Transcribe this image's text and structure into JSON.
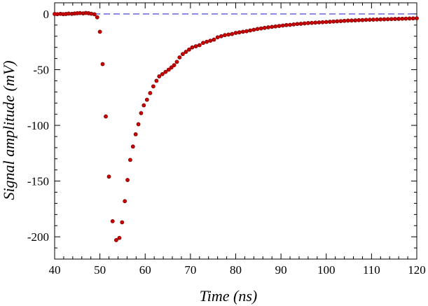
{
  "chart_data": {
    "type": "scatter",
    "xlabel": "Time (ns)",
    "ylabel": "Signal amplitude (mV)",
    "xlim": [
      40,
      120
    ],
    "ylim": [
      -220,
      10
    ],
    "xticks": [
      40,
      50,
      60,
      70,
      80,
      90,
      100,
      110,
      120
    ],
    "yticks": [
      0,
      -50,
      -100,
      -150,
      -200
    ],
    "grid": false,
    "legend": "none",
    "reference_line": {
      "y": 0,
      "style": "dashed",
      "color": "#3333cc"
    },
    "marker_color": "#cc0000",
    "marker_edge_color": "#660000",
    "series": [
      {
        "x": [
          40.0,
          40.6,
          41.3,
          41.9,
          42.5,
          43.1,
          43.8,
          44.4,
          45.0,
          45.6,
          46.3,
          46.9,
          47.5,
          48.1,
          48.8,
          49.4,
          50.0,
          50.6,
          51.3,
          52.0,
          52.8,
          53.6,
          54.3,
          54.9,
          55.5,
          56.1,
          56.7,
          57.3,
          57.9,
          58.5,
          59.1,
          59.7,
          60.4,
          61.1,
          61.8,
          62.5,
          63.1,
          63.8,
          64.5,
          65.2,
          65.8,
          66.4,
          67.0,
          67.6,
          68.3,
          69.0,
          69.7,
          70.4,
          71.2,
          72.0,
          72.8,
          73.6,
          74.4,
          75.2,
          76.0,
          76.8,
          77.6,
          78.4,
          79.2,
          80.0,
          80.8,
          81.6,
          82.4,
          83.2,
          84.0,
          84.8,
          85.6,
          86.4,
          87.2,
          88.0,
          88.8,
          89.6,
          90.4,
          91.2,
          92.0,
          92.8,
          93.6,
          94.4,
          95.2,
          96.0,
          96.8,
          97.6,
          98.4,
          99.2,
          100.0,
          100.8,
          101.6,
          102.4,
          103.2,
          104.0,
          104.8,
          105.6,
          106.4,
          107.2,
          108.0,
          108.8,
          109.6,
          110.4,
          111.2,
          112.0,
          112.8,
          113.6,
          114.4,
          115.2,
          116.0,
          116.8,
          117.6,
          118.4,
          119.2,
          120.0
        ],
        "y": [
          0.0,
          -0.2,
          0.1,
          -0.2,
          0.0,
          0.3,
          0.1,
          0.4,
          0.6,
          0.8,
          0.5,
          0.9,
          0.6,
          0.2,
          -0.3,
          -3,
          -16,
          -45,
          -92,
          -146,
          -186,
          -203,
          -201,
          -187,
          -168,
          -149,
          -131,
          -119,
          -108,
          -99,
          -89,
          -82,
          -77,
          -71,
          -65,
          -60,
          -56,
          -54,
          -52,
          -50,
          -48,
          -46,
          -43,
          -39,
          -36,
          -34,
          -32,
          -30,
          -29,
          -28,
          -26,
          -25,
          -24,
          -23,
          -21,
          -20,
          -19,
          -18.5,
          -18,
          -17,
          -16.5,
          -16,
          -15.5,
          -14.8,
          -14.2,
          -13.5,
          -13,
          -12.5,
          -12,
          -11.6,
          -11.2,
          -10.8,
          -10.4,
          -10,
          -9.8,
          -9.4,
          -9,
          -8.8,
          -8.5,
          -8.2,
          -8,
          -7.8,
          -7.6,
          -7.4,
          -7.2,
          -7,
          -6.8,
          -6.6,
          -6.4,
          -6.2,
          -6,
          -5.9,
          -5.8,
          -5.6,
          -5.5,
          -5.3,
          -5.2,
          -5.1,
          -5,
          -4.9,
          -4.8,
          -4.7,
          -4.6,
          -4.5,
          -4.4,
          -4.3,
          -4.2,
          -4.1,
          -4.0,
          -3.9
        ]
      }
    ]
  }
}
